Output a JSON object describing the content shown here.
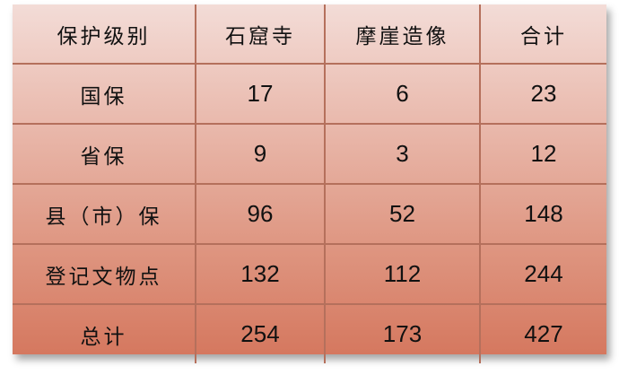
{
  "table": {
    "headers": [
      "保护级别",
      "石窟寺",
      "摩崖造像",
      "合计"
    ],
    "rows": [
      [
        "国保",
        "17",
        "6",
        "23"
      ],
      [
        "省保",
        "9",
        "3",
        "12"
      ],
      [
        "县（市）保",
        "96",
        "52",
        "148"
      ],
      [
        "登记文物点",
        "132",
        "112",
        "244"
      ],
      [
        "总计",
        "254",
        "173",
        "427"
      ]
    ]
  },
  "colors": {
    "top": "#f3dcd7",
    "bottom": "#d5785f",
    "border": "#b5705c"
  }
}
